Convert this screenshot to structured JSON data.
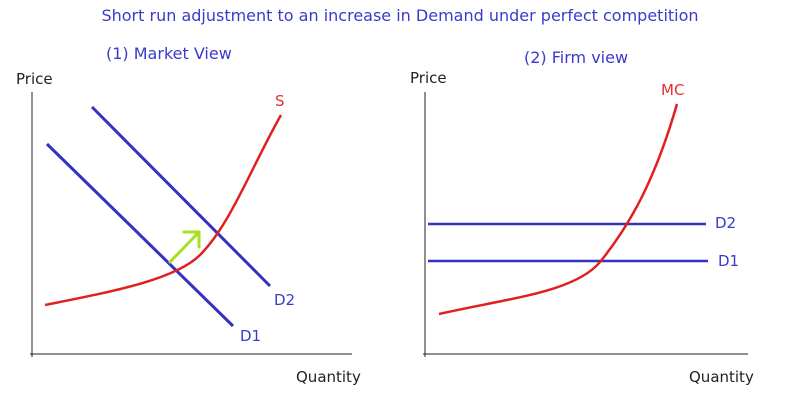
{
  "title": "Short run adjustment to an increase in Demand under perfect competition",
  "colors": {
    "curve_supply": "#e02020",
    "curve_demand": "#3333c0",
    "arrow": "#a8e020",
    "axis": "#222222",
    "text_blue": "#3a3acb"
  },
  "market_panel": {
    "title": "(1) Market View",
    "y_axis_label": "Price",
    "x_axis_label": "Quantity",
    "supply_label": "S",
    "demand_labels": [
      "D1",
      "D2"
    ]
  },
  "firm_panel": {
    "title": "(2) Firm view",
    "y_axis_label": "Price",
    "x_axis_label": "Quantity",
    "mc_label": "MC",
    "demand_labels": [
      "D2",
      "D1"
    ]
  }
}
